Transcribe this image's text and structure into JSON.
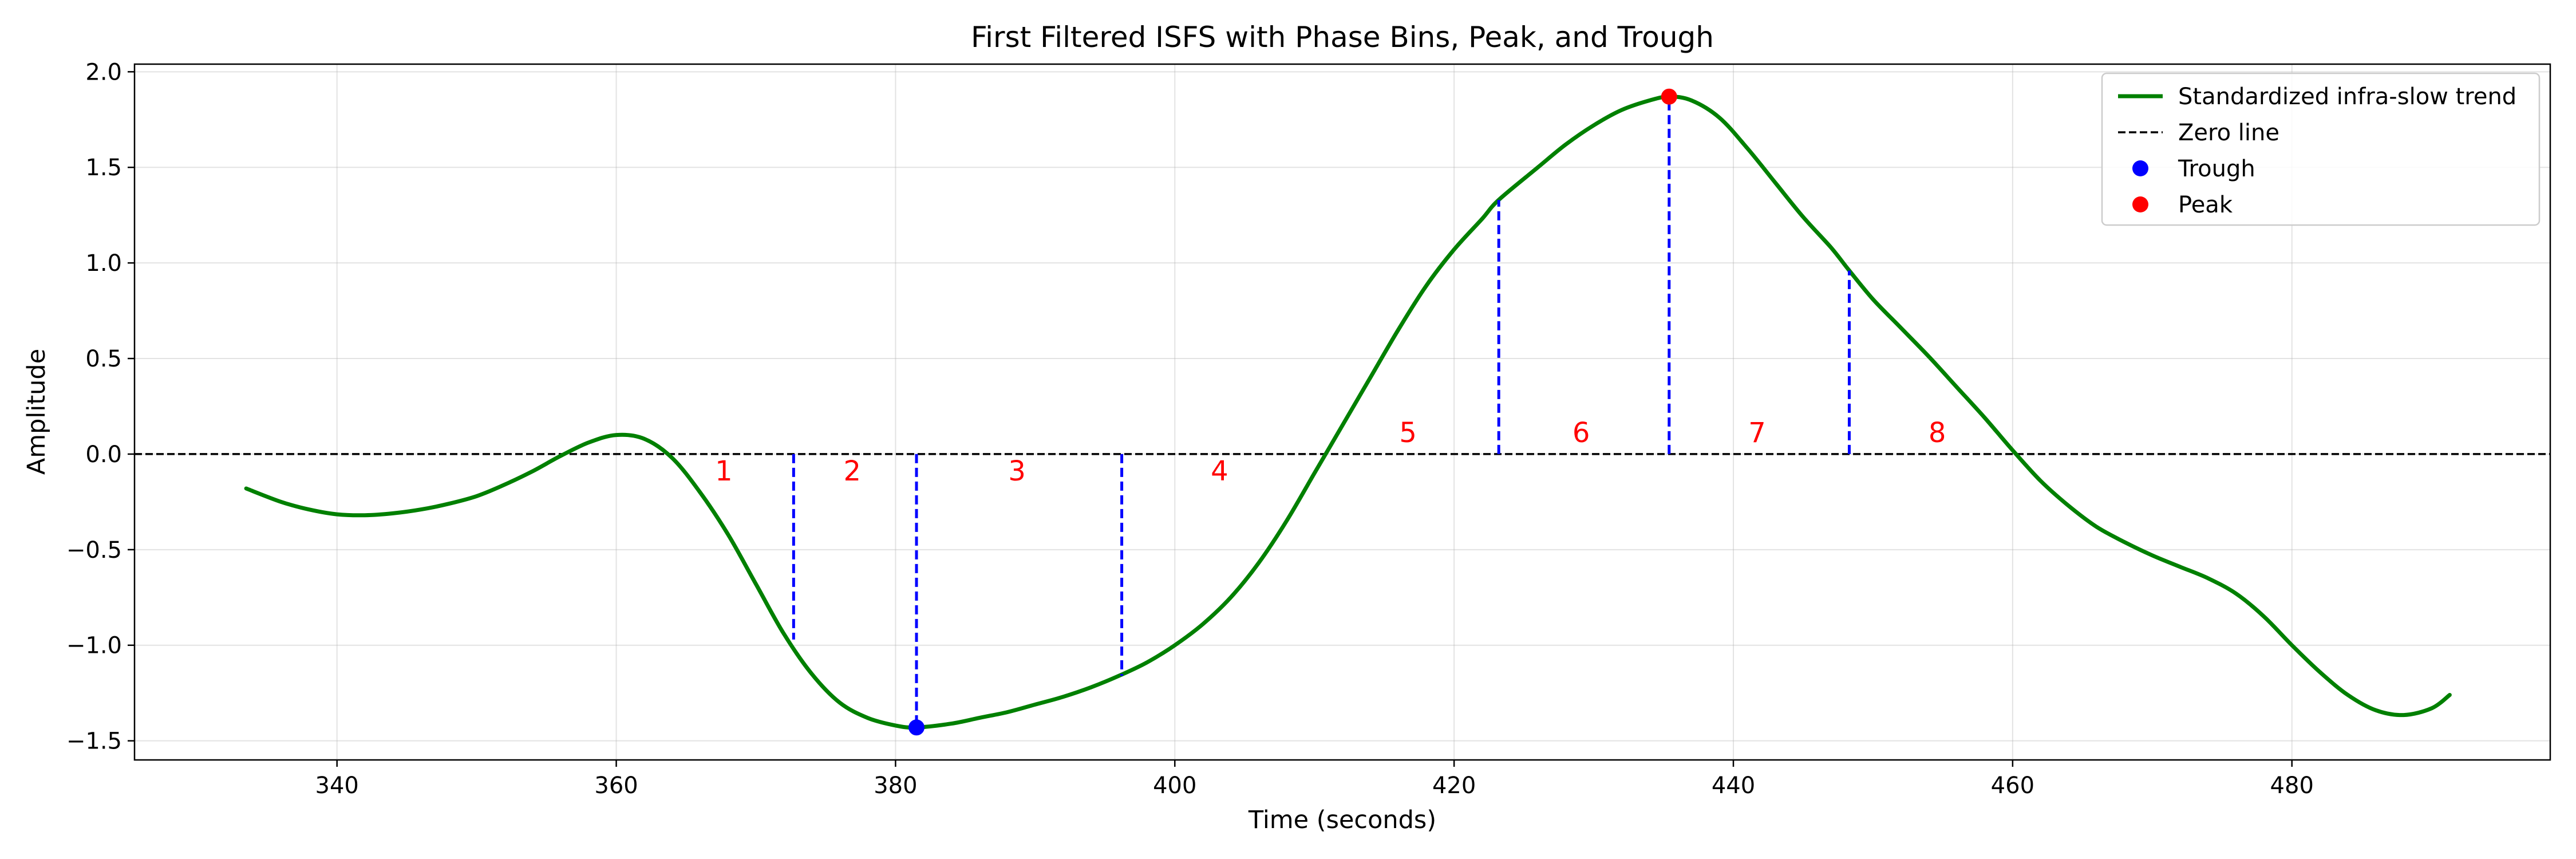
{
  "chart_data": {
    "type": "line",
    "title": "First Filtered ISFS with Phase Bins, Peak, and Trough",
    "xlabel": "Time (seconds)",
    "ylabel": "Amplitude",
    "xlim": [
      325.5,
      498.5
    ],
    "ylim": [
      -1.6,
      2.04
    ],
    "xticks": [
      340,
      360,
      380,
      400,
      420,
      440,
      460,
      480
    ],
    "yticks": [
      -1.5,
      -1.0,
      -0.5,
      0.0,
      0.5,
      1.0,
      1.5,
      2.0
    ],
    "xtick_labels": [
      "340",
      "360",
      "380",
      "400",
      "420",
      "440",
      "460",
      "480"
    ],
    "ytick_labels": [
      "−1.5",
      "−1.0",
      "−0.5",
      "0.0",
      "0.5",
      "1.0",
      "1.5",
      "2.0"
    ],
    "grid": true,
    "legend_position": "top-right",
    "series": [
      {
        "name": "Standardized infra-slow trend",
        "color": "#008000",
        "x": [
          333.5,
          336,
          338,
          340,
          342,
          344,
          346,
          348,
          350,
          352,
          354,
          356,
          358,
          360,
          362,
          364,
          366,
          368,
          370,
          372,
          374,
          376,
          378,
          380,
          381.5,
          384,
          386,
          388,
          390,
          392,
          394,
          396,
          398,
          400,
          402,
          404,
          406,
          408,
          410,
          412,
          414,
          416,
          418,
          420,
          422,
          423.2,
          426,
          428,
          430,
          432,
          434,
          435.4,
          437,
          439,
          441,
          443,
          445,
          447,
          448.3,
          450,
          452,
          454,
          456,
          458,
          460,
          462,
          464,
          466,
          468,
          470,
          472,
          474,
          476,
          478,
          480,
          482,
          484,
          486,
          488,
          490,
          491.3
        ],
        "y": [
          -0.18,
          -0.25,
          -0.29,
          -0.315,
          -0.32,
          -0.31,
          -0.29,
          -0.26,
          -0.22,
          -0.16,
          -0.09,
          -0.01,
          0.06,
          0.1,
          0.08,
          -0.02,
          -0.2,
          -0.42,
          -0.68,
          -0.94,
          -1.15,
          -1.3,
          -1.38,
          -1.42,
          -1.43,
          -1.41,
          -1.38,
          -1.35,
          -1.31,
          -1.27,
          -1.22,
          -1.16,
          -1.09,
          -1.0,
          -0.89,
          -0.75,
          -0.57,
          -0.35,
          -0.1,
          0.15,
          0.4,
          0.65,
          0.88,
          1.07,
          1.23,
          1.33,
          1.5,
          1.62,
          1.72,
          1.8,
          1.85,
          1.87,
          1.85,
          1.76,
          1.6,
          1.42,
          1.24,
          1.08,
          0.96,
          0.81,
          0.66,
          0.51,
          0.35,
          0.19,
          0.02,
          -0.14,
          -0.27,
          -0.38,
          -0.46,
          -0.53,
          -0.59,
          -0.65,
          -0.73,
          -0.85,
          -1.0,
          -1.14,
          -1.26,
          -1.34,
          -1.365,
          -1.33,
          -1.26
        ]
      },
      {
        "name": "Zero line",
        "color": "#000000",
        "style": "dashed",
        "y": 0.0
      },
      {
        "name": "Trough",
        "color": "#0000ff",
        "x": [
          381.5
        ],
        "y": [
          -1.43
        ]
      },
      {
        "name": "Peak",
        "color": "#ff0000",
        "x": [
          435.4
        ],
        "y": [
          1.87
        ]
      }
    ],
    "phase_bin_boundaries": [
      {
        "x": 372.7,
        "y": -0.97
      },
      {
        "x": 381.5,
        "y": -1.43
      },
      {
        "x": 396.2,
        "y": -1.16
      },
      {
        "x": 423.2,
        "y": 1.33
      },
      {
        "x": 435.4,
        "y": 1.87
      },
      {
        "x": 448.3,
        "y": 0.96
      }
    ],
    "bin_labels": [
      {
        "text": "1",
        "x": 367.7,
        "y": -0.09
      },
      {
        "text": "2",
        "x": 376.9,
        "y": -0.09
      },
      {
        "text": "3",
        "x": 388.7,
        "y": -0.09
      },
      {
        "text": "4",
        "x": 403.2,
        "y": -0.09
      },
      {
        "text": "5",
        "x": 416.7,
        "y": 0.11
      },
      {
        "text": "6",
        "x": 429.1,
        "y": 0.11
      },
      {
        "text": "7",
        "x": 441.7,
        "y": 0.11
      },
      {
        "text": "8",
        "x": 454.6,
        "y": 0.11
      }
    ],
    "bin_label_color": "#ff0000",
    "bin_line_color": "#0000ff"
  },
  "legend": {
    "items": [
      {
        "label": "Standardized infra-slow trend",
        "kind": "line",
        "color": "#008000"
      },
      {
        "label": "Zero line",
        "kind": "dashed",
        "color": "#000000"
      },
      {
        "label": "Trough",
        "kind": "dot",
        "color": "#0000ff"
      },
      {
        "label": "Peak",
        "kind": "dot",
        "color": "#ff0000"
      }
    ]
  }
}
